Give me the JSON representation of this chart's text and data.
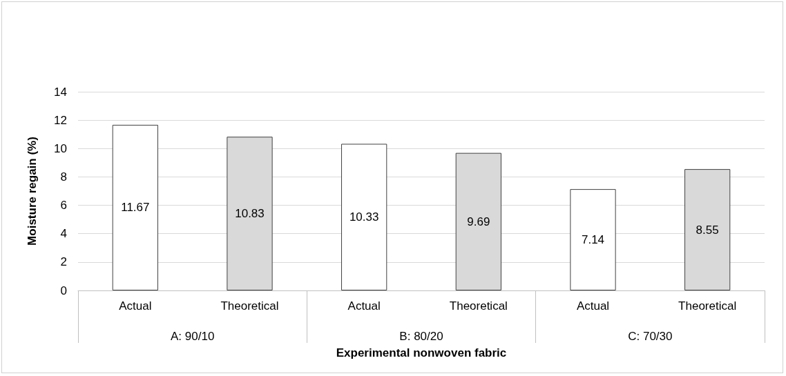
{
  "chart_data": {
    "type": "bar",
    "xlabel": "Experimental nonwoven fabric",
    "ylabel": "Moisture regain (%)",
    "categories": [
      "Actual",
      "Theoretical",
      "Actual",
      "Theoretical",
      "Actual",
      "Theoretical"
    ],
    "values": [
      11.67,
      10.83,
      10.33,
      9.69,
      7.14,
      8.55
    ],
    "colors": [
      "#ffffff",
      "#d9d9d9",
      "#ffffff",
      "#d9d9d9",
      "#ffffff",
      "#d9d9d9"
    ],
    "annotations": [
      "A: 90/10",
      "B: 80/20",
      "C: 70/30"
    ],
    "ylim": [
      0,
      14
    ],
    "yticks": [
      0,
      2,
      4,
      6,
      8,
      10,
      12,
      14
    ],
    "grid": "y",
    "data_labels": true
  }
}
